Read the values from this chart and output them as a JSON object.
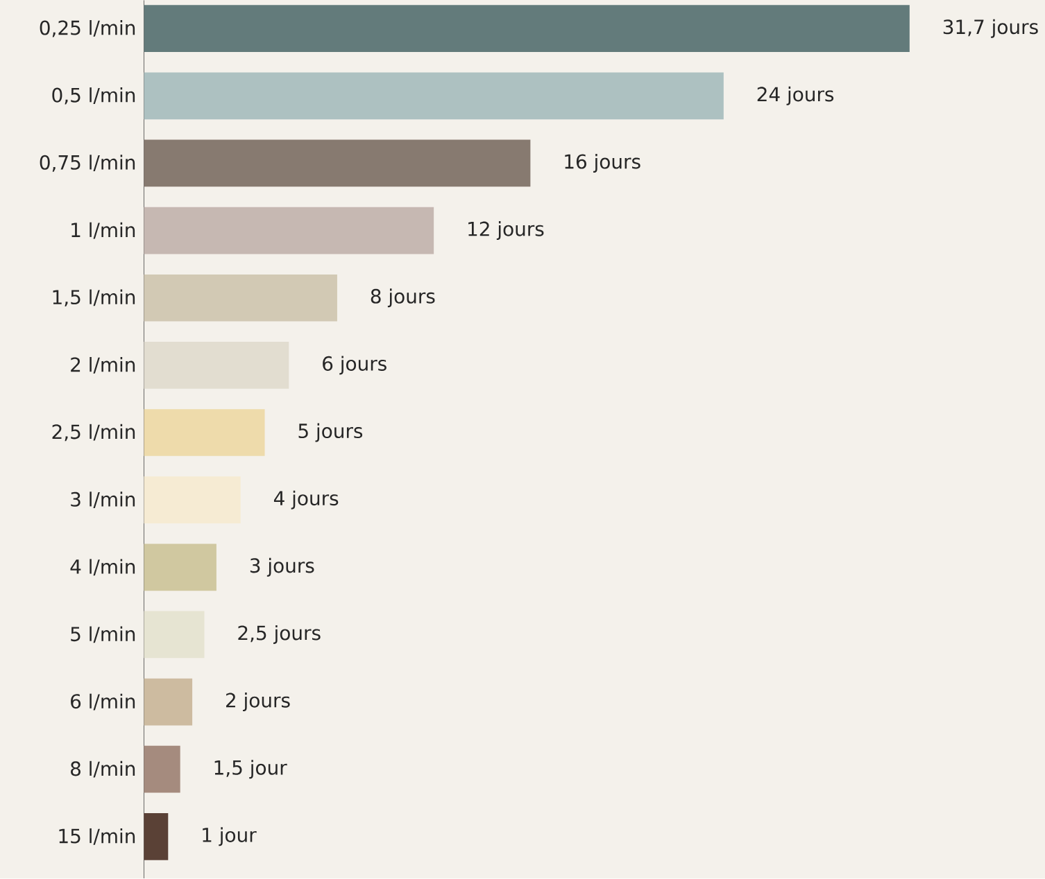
{
  "chart_data": {
    "type": "bar",
    "orientation": "horizontal",
    "tick_labels": "y",
    "categories": [
      "0,25 l/min",
      "0,5 l/min",
      "0,75 l/min",
      "1 l/min",
      "1,5 l/min",
      "2 l/min",
      "2,5 l/min",
      "3 l/min",
      "4 l/min",
      "5 l/min",
      "6 l/min",
      "8 l/min",
      "15 l/min"
    ],
    "values": [
      31.7,
      24,
      16,
      12,
      8,
      6,
      5,
      4,
      3,
      2.5,
      2,
      1.5,
      1
    ],
    "colors": [
      "#637b7b",
      "#adc1c1",
      "#877a70",
      "#c6b8b2",
      "#d2c9b4",
      "#e2ddd0",
      "#eedbab",
      "#f6ebd3",
      "#d0c8a0",
      "#e6e4d2",
      "#cdbba0",
      "#a58b7e",
      "#5a4136"
    ],
    "value_labels": [
      "31,7 jours",
      "24 jours",
      "16 jours",
      "12 jours",
      "8 jours",
      "6 jours",
      "5 jours",
      "4 jours",
      "3 jours",
      "2,5 jours",
      "2 jours",
      "1,5 jour",
      "1 jour"
    ]
  }
}
